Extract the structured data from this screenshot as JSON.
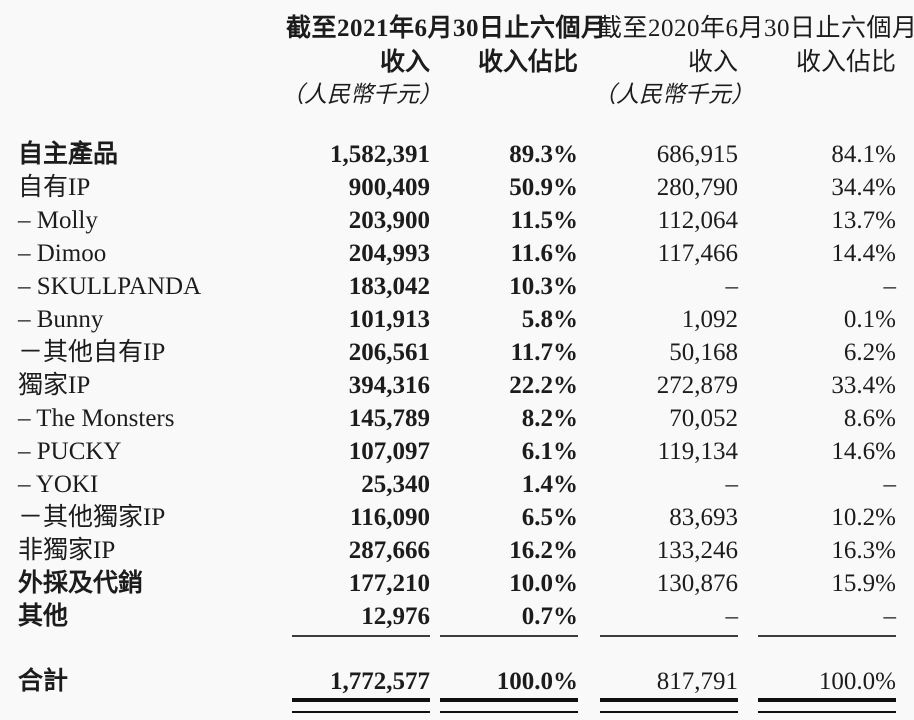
{
  "page": {
    "background": "#f9f9f9",
    "text_color": "#1c1c1c",
    "rule_color": "#3d3d3d",
    "total_rule_color": "#101010"
  },
  "header": {
    "period_2021": {
      "title": "截至2021年6月30日止六個月",
      "revenue_label": "收入",
      "share_label": "收入佔比",
      "unit": "（人民幣千元）"
    },
    "period_2020": {
      "title": "截至2020年6月30日止六個月",
      "revenue_label": "收入",
      "share_label": "收入佔比",
      "unit": "（人民幣千元）"
    }
  },
  "rows": [
    {
      "label": "自主產品",
      "label_bold": true,
      "revenue_2021": "1,582,391",
      "share_2021": "89.3%",
      "revenue_2020": "686,915",
      "share_2020": "84.1%"
    },
    {
      "label": "自有IP",
      "label_bold": false,
      "revenue_2021": "900,409",
      "share_2021": "50.9%",
      "revenue_2020": "280,790",
      "share_2020": "34.4%"
    },
    {
      "label": "– Molly",
      "label_bold": false,
      "revenue_2021": "203,900",
      "share_2021": "11.5%",
      "revenue_2020": "112,064",
      "share_2020": "13.7%"
    },
    {
      "label": "– Dimoo",
      "label_bold": false,
      "revenue_2021": "204,993",
      "share_2021": "11.6%",
      "revenue_2020": "117,466",
      "share_2020": "14.4%"
    },
    {
      "label": "– SKULLPANDA",
      "label_bold": false,
      "revenue_2021": "183,042",
      "share_2021": "10.3%",
      "revenue_2020": "–",
      "share_2020": "–"
    },
    {
      "label": "– Bunny",
      "label_bold": false,
      "revenue_2021": "101,913",
      "share_2021": "5.8%",
      "revenue_2020": "1,092",
      "share_2020": "0.1%"
    },
    {
      "label": "－其他自有IP",
      "label_bold": false,
      "revenue_2021": "206,561",
      "share_2021": "11.7%",
      "revenue_2020": "50,168",
      "share_2020": "6.2%"
    },
    {
      "label": "獨家IP",
      "label_bold": false,
      "revenue_2021": "394,316",
      "share_2021": "22.2%",
      "revenue_2020": "272,879",
      "share_2020": "33.4%"
    },
    {
      "label": "– The Monsters",
      "label_bold": false,
      "revenue_2021": "145,789",
      "share_2021": "8.2%",
      "revenue_2020": "70,052",
      "share_2020": "8.6%"
    },
    {
      "label": "– PUCKY",
      "label_bold": false,
      "revenue_2021": "107,097",
      "share_2021": "6.1%",
      "revenue_2020": "119,134",
      "share_2020": "14.6%"
    },
    {
      "label": "– YOKI",
      "label_bold": false,
      "revenue_2021": "25,340",
      "share_2021": "1.4%",
      "revenue_2020": "–",
      "share_2020": "–"
    },
    {
      "label": "－其他獨家IP",
      "label_bold": false,
      "revenue_2021": "116,090",
      "share_2021": "6.5%",
      "revenue_2020": "83,693",
      "share_2020": "10.2%"
    },
    {
      "label": "非獨家IP",
      "label_bold": false,
      "revenue_2021": "287,666",
      "share_2021": "16.2%",
      "revenue_2020": "133,246",
      "share_2020": "16.3%"
    },
    {
      "label": "外採及代銷",
      "label_bold": true,
      "revenue_2021": "177,210",
      "share_2021": "10.0%",
      "revenue_2020": "130,876",
      "share_2020": "15.9%"
    },
    {
      "label": "其他",
      "label_bold": true,
      "revenue_2021": "12,976",
      "share_2021": "0.7%",
      "revenue_2020": "–",
      "share_2020": "–"
    }
  ],
  "total": {
    "label": "合計",
    "revenue_2021": "1,772,577",
    "share_2021": "100.0%",
    "revenue_2020": "817,791",
    "share_2020": "100.0%"
  }
}
